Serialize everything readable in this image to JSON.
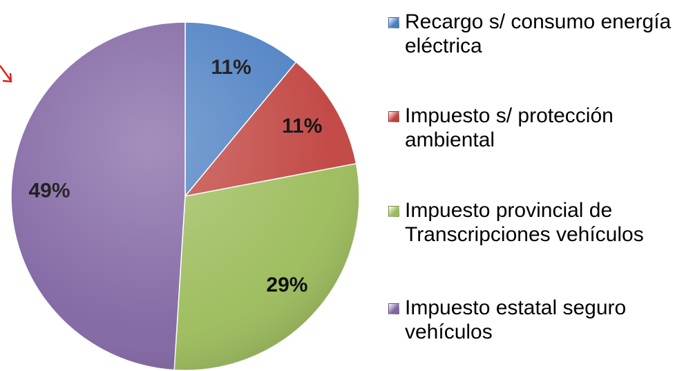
{
  "chart_data": {
    "type": "pie",
    "categories": [
      "Recargo s/ consumo energía eléctrica",
      "Impuesto s/ protección ambiental",
      "Impuesto provincial de Transcripciones vehículos",
      "Impuesto estatal seguro vehículos"
    ],
    "values": [
      11,
      11,
      29,
      49
    ],
    "value_labels": [
      "11%",
      "11%",
      "29%",
      "49%"
    ],
    "colors": [
      "#4a7ec2",
      "#c0413d",
      "#9bbb59",
      "#8064a2"
    ],
    "legend": "right"
  }
}
